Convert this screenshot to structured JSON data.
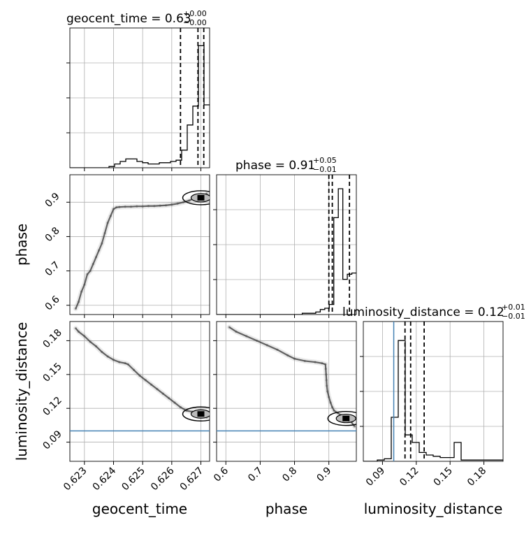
{
  "chart_data": {
    "type": "corner",
    "parameters": [
      "geocent_time",
      "phase",
      "luminosity_distance"
    ],
    "titles": {
      "geocent_time": {
        "label": "geocent_time = 0.63",
        "sup": "+0.00",
        "sub": "−0.00"
      },
      "phase": {
        "label": "phase = 0.91",
        "sup": "+0.05",
        "sub": "−0.01"
      },
      "luminosity_distance": {
        "label": "luminosity_distance = 0.12",
        "sup": "+0.01",
        "sub": "−0.01"
      }
    },
    "ranges": {
      "geocent_time": [
        0.6225,
        0.6273
      ],
      "phase": [
        0.573,
        0.98
      ],
      "luminosity_distance": [
        0.073,
        0.197
      ]
    },
    "ticks": {
      "geocent_time": [
        "0.623",
        "0.624",
        "0.625",
        "0.626",
        "0.627"
      ],
      "phase": [
        "0.6",
        "0.7",
        "0.8",
        "0.9"
      ],
      "luminosity_distance": [
        "0.09",
        "0.12",
        "0.15",
        "0.18"
      ]
    },
    "quantiles": {
      "geocent_time": [
        0.6263,
        0.6269,
        0.6271
      ],
      "phase": [
        0.9,
        0.91,
        0.96
      ],
      "luminosity_distance": [
        0.11,
        0.115,
        0.127
      ]
    },
    "truths": {
      "luminosity_distance": 0.1
    },
    "histograms": {
      "geocent_time": [
        0,
        0,
        0,
        0,
        0,
        0,
        0,
        0.01,
        0.03,
        0.05,
        0.07,
        0.07,
        0.05,
        0.04,
        0.03,
        0.03,
        0.04,
        0.04,
        0.05,
        0.06,
        0.14,
        0.34,
        0.49,
        0.97,
        0.5
      ],
      "phase": [
        0,
        0,
        0,
        0,
        0,
        0,
        0,
        0,
        0,
        0,
        0,
        0,
        0,
        0,
        0,
        0,
        0,
        0,
        0,
        0.01,
        0.01,
        0.01,
        0.02,
        0.04,
        0.05,
        0.08,
        0.77,
        1.0,
        0.28,
        0.32,
        0.33
      ],
      "luminosity_distance": [
        0,
        0,
        0.01,
        0.02,
        0.35,
        0.96,
        0.21,
        0.15,
        0.07,
        0.05,
        0.04,
        0.03,
        0.03,
        0.15,
        0.01,
        0.01,
        0.01,
        0.01,
        0.01,
        0.01
      ]
    },
    "samples": {
      "geocent_time_vs_phase": {
        "x": [
          0.6227,
          0.6228,
          0.6229,
          0.623,
          0.6231,
          0.6232,
          0.6233,
          0.6234,
          0.6235,
          0.6236,
          0.6237,
          0.6238,
          0.6239,
          0.624,
          0.6241,
          0.6242,
          0.6244,
          0.6246,
          0.6248,
          0.625,
          0.6252,
          0.6254,
          0.6256,
          0.6258,
          0.626,
          0.6262,
          0.6264,
          0.6266,
          0.6268,
          0.627,
          0.6271,
          0.6272
        ],
        "y": [
          0.59,
          0.61,
          0.64,
          0.66,
          0.69,
          0.7,
          0.72,
          0.74,
          0.76,
          0.78,
          0.81,
          0.84,
          0.86,
          0.88,
          0.885,
          0.886,
          0.887,
          0.887,
          0.888,
          0.888,
          0.889,
          0.889,
          0.89,
          0.891,
          0.893,
          0.896,
          0.9,
          0.905,
          0.912,
          0.913,
          0.918,
          0.925
        ]
      },
      "geocent_time_vs_luminosity_distance": {
        "x": [
          0.6227,
          0.6228,
          0.623,
          0.6232,
          0.6234,
          0.6236,
          0.6238,
          0.624,
          0.6242,
          0.6244,
          0.6245,
          0.6247,
          0.6249,
          0.6251,
          0.6253,
          0.6255,
          0.6257,
          0.6259,
          0.6261,
          0.6263,
          0.6265,
          0.6267,
          0.6269,
          0.627,
          0.6271,
          0.6272
        ],
        "y": [
          0.191,
          0.188,
          0.184,
          0.179,
          0.175,
          0.17,
          0.166,
          0.163,
          0.161,
          0.16,
          0.159,
          0.154,
          0.149,
          0.145,
          0.141,
          0.137,
          0.133,
          0.129,
          0.125,
          0.121,
          0.118,
          0.117,
          0.116,
          0.115,
          0.114,
          0.112
        ]
      },
      "phase_vs_luminosity_distance": {
        "x": [
          0.61,
          0.63,
          0.66,
          0.69,
          0.72,
          0.75,
          0.78,
          0.8,
          0.83,
          0.86,
          0.88,
          0.89,
          0.891,
          0.892,
          0.893,
          0.894,
          0.896,
          0.9,
          0.905,
          0.91,
          0.915,
          0.925,
          0.935,
          0.95,
          0.965,
          0.975
        ],
        "y": [
          0.192,
          0.188,
          0.184,
          0.18,
          0.176,
          0.172,
          0.167,
          0.164,
          0.162,
          0.161,
          0.16,
          0.159,
          0.155,
          0.15,
          0.145,
          0.14,
          0.135,
          0.13,
          0.125,
          0.121,
          0.118,
          0.116,
          0.114,
          0.111,
          0.108,
          0.104
        ]
      }
    }
  }
}
